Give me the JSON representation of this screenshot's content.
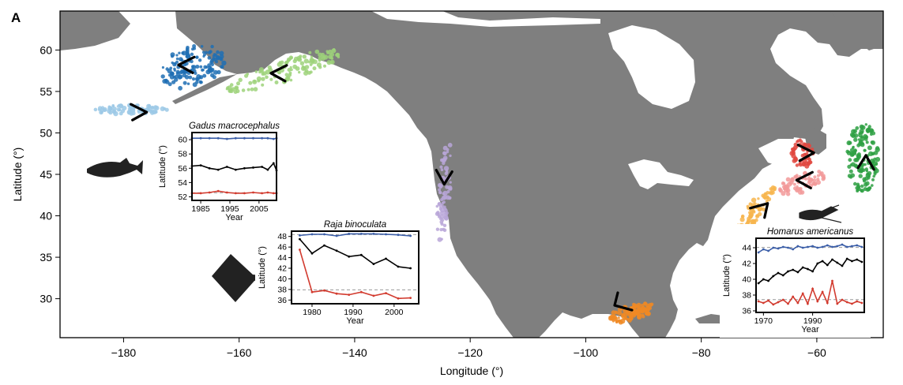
{
  "panel_label": "A",
  "map": {
    "xlabel": "Longitude (°)",
    "ylabel": "Latitude (°)",
    "xlim": [
      -191,
      -48.5
    ],
    "ylim": [
      25.3,
      64.7
    ],
    "x_ticks": [
      -180,
      -160,
      -140,
      -120,
      -100,
      -80,
      -60
    ],
    "x_tick_labels": [
      "−180",
      "−160",
      "−140",
      "−120",
      "−100",
      "−80",
      "−60"
    ],
    "y_ticks": [
      30,
      35,
      40,
      45,
      50,
      55,
      60
    ],
    "y_tick_labels": [
      "30",
      "35",
      "40",
      "45",
      "50",
      "55",
      "60"
    ],
    "land_color": "#7f7f7f",
    "ocean_color": "#ffffff"
  },
  "species_regions": [
    {
      "region": "Bering Sea (dark blue)",
      "color": "#1f6fb4",
      "center": [
        -168,
        58
      ]
    },
    {
      "region": "Aleutian Islands (light blue)",
      "color": "#9cc9e6",
      "center": [
        -179,
        52.8
      ]
    },
    {
      "region": "Gulf of Alaska (light green)",
      "color": "#9ed27a",
      "center": [
        -152,
        57.5
      ]
    },
    {
      "region": "US West Coast (lavender)",
      "color": "#b9a6d8",
      "center": [
        -124.5,
        43
      ]
    },
    {
      "region": "Gulf of Mexico (orange)",
      "color": "#f08a24",
      "center": [
        -92,
        28.3
      ]
    },
    {
      "region": "Northeast US shelf (light orange)",
      "color": "#f7b54d",
      "center": [
        -71,
        40.5
      ]
    },
    {
      "region": "Scotian Shelf (pink)",
      "color": "#f29a9a",
      "center": [
        -62.5,
        44
      ]
    },
    {
      "region": "Gulf of St. Lawrence (red)",
      "color": "#e0483f",
      "center": [
        -62.5,
        47.5
      ]
    },
    {
      "region": "Newfoundland (green)",
      "color": "#2ea043",
      "center": [
        -52,
        47
      ]
    }
  ],
  "shift_arrows": [
    {
      "region": "Bering Sea",
      "tip": [
        -170.5,
        58.2
      ],
      "orientation": "left"
    },
    {
      "region": "Aleutian Islands",
      "tip": [
        -176,
        52.5
      ],
      "orientation": "right"
    },
    {
      "region": "Gulf of Alaska",
      "tip": [
        -154.5,
        57.2
      ],
      "orientation": "left"
    },
    {
      "region": "US West Coast",
      "tip": [
        -124.5,
        43.8
      ],
      "orientation": "down"
    },
    {
      "region": "Gulf of Mexico",
      "tip": [
        -95,
        29.2
      ],
      "orientation": "up-left"
    },
    {
      "region": "Northeast US shelf",
      "tip": [
        -68.5,
        41.5
      ],
      "orientation": "up-right"
    },
    {
      "region": "Scotian Shelf",
      "tip": [
        -63.5,
        44.3
      ],
      "orientation": "left"
    },
    {
      "region": "Gulf of St. Lawrence",
      "tip": [
        -60.5,
        47.6
      ],
      "orientation": "right"
    },
    {
      "region": "Newfoundland",
      "tip": [
        -51.5,
        47.3
      ],
      "orientation": "up"
    }
  ],
  "chart_data": [
    {
      "type": "line",
      "title": "Gadus macrocephalus",
      "xlabel": "Year",
      "ylabel": "Latitude (°)",
      "xlim": [
        1982,
        2011
      ],
      "ylim": [
        51.5,
        61
      ],
      "x_ticks": [
        1985,
        1995,
        2005
      ],
      "y_ticks": [
        52,
        54,
        56,
        58,
        60
      ],
      "series": [
        {
          "role": "upper edge",
          "color": "#3b5ea8",
          "x": [
            1982,
            1985,
            1988,
            1991,
            1994,
            1997,
            2000,
            2003,
            2006,
            2008,
            2010,
            2011
          ],
          "values": [
            60.2,
            60.2,
            60.2,
            60.2,
            60.1,
            60.2,
            60.2,
            60.2,
            60.2,
            60.2,
            60.1,
            60.2
          ]
        },
        {
          "role": "centroid",
          "color": "#000000",
          "x": [
            1982,
            1985,
            1988,
            1991,
            1994,
            1997,
            2000,
            2003,
            2006,
            2008,
            2010,
            2011
          ],
          "values": [
            56.3,
            56.4,
            56.0,
            55.8,
            56.2,
            55.8,
            56.0,
            56.1,
            56.2,
            55.8,
            56.7,
            55.7
          ]
        },
        {
          "role": "lower edge",
          "color": "#d23b2f",
          "x": [
            1982,
            1985,
            1988,
            1991,
            1994,
            1997,
            2000,
            2003,
            2006,
            2008,
            2010,
            2011
          ],
          "values": [
            52.5,
            52.5,
            52.6,
            52.8,
            52.6,
            52.5,
            52.5,
            52.6,
            52.5,
            52.6,
            52.5,
            52.5
          ]
        }
      ]
    },
    {
      "type": "line",
      "title": "Raja binoculata",
      "xlabel": "Year",
      "ylabel": "Latitude (°)",
      "xlim": [
        1975,
        2006
      ],
      "ylim": [
        35.3,
        49
      ],
      "x_ticks": [
        1980,
        1990,
        2000
      ],
      "y_ticks": [
        36,
        38,
        40,
        42,
        44,
        46,
        48
      ],
      "series": [
        {
          "role": "upper edge",
          "color": "#3b5ea8",
          "x": [
            1977,
            1980,
            1983,
            1986,
            1989,
            1992,
            1995,
            1998,
            2001,
            2004
          ],
          "values": [
            48.2,
            48.4,
            48.4,
            48.1,
            48.5,
            48.5,
            48.5,
            48.4,
            48.3,
            48.1
          ]
        },
        {
          "role": "centroid",
          "color": "#000000",
          "x": [
            1977,
            1980,
            1983,
            1986,
            1989,
            1992,
            1995,
            1998,
            2001,
            2004
          ],
          "values": [
            47.5,
            44.8,
            46.3,
            45.3,
            44.2,
            44.5,
            42.8,
            43.8,
            42.3,
            42.0
          ]
        },
        {
          "role": "lower edge",
          "color": "#d23b2f",
          "x": [
            1977,
            1980,
            1983,
            1986,
            1989,
            1992,
            1995,
            1998,
            2001,
            2004
          ],
          "values": [
            45.5,
            37.5,
            37.8,
            37.2,
            37.0,
            37.5,
            36.8,
            37.3,
            36.3,
            36.4
          ]
        }
      ]
    },
    {
      "type": "line",
      "title": "Homarus americanus",
      "xlabel": "Year",
      "ylabel": "Latitude (°)",
      "xlim": [
        1967,
        2011
      ],
      "ylim": [
        35.8,
        45.2
      ],
      "x_ticks": [
        1970,
        1990
      ],
      "y_ticks": [
        36,
        38,
        40,
        42,
        44
      ],
      "series": [
        {
          "role": "upper edge",
          "color": "#3b5ea8",
          "x": [
            1968,
            1970,
            1972,
            1974,
            1976,
            1978,
            1980,
            1982,
            1984,
            1986,
            1988,
            1990,
            1992,
            1994,
            1996,
            1998,
            2000,
            2002,
            2004,
            2006,
            2008,
            2010
          ],
          "values": [
            43.4,
            43.8,
            43.6,
            44.0,
            43.9,
            44.1,
            44.0,
            43.8,
            44.2,
            44.0,
            44.1,
            44.2,
            44.0,
            44.1,
            44.3,
            44.1,
            44.2,
            44.4,
            44.1,
            44.2,
            44.3,
            44.1
          ]
        },
        {
          "role": "centroid",
          "color": "#000000",
          "x": [
            1968,
            1970,
            1972,
            1974,
            1976,
            1978,
            1980,
            1982,
            1984,
            1986,
            1988,
            1990,
            1992,
            1994,
            1996,
            1998,
            2000,
            2002,
            2004,
            2006,
            2008,
            2010
          ],
          "values": [
            39.5,
            40.0,
            39.8,
            40.4,
            40.8,
            40.5,
            41.0,
            41.2,
            40.9,
            41.5,
            41.3,
            41.0,
            42.0,
            42.3,
            41.8,
            42.5,
            42.1,
            41.7,
            42.6,
            42.3,
            42.5,
            42.2
          ]
        },
        {
          "role": "lower edge",
          "color": "#d23b2f",
          "x": [
            1968,
            1970,
            1972,
            1974,
            1976,
            1978,
            1980,
            1982,
            1984,
            1986,
            1988,
            1990,
            1992,
            1994,
            1996,
            1998,
            2000,
            2002,
            2004,
            2006,
            2008,
            2010
          ],
          "values": [
            37.2,
            37.0,
            37.3,
            36.8,
            37.1,
            37.4,
            36.9,
            37.8,
            37.0,
            38.2,
            36.9,
            38.8,
            37.2,
            38.4,
            37.0,
            39.8,
            36.9,
            37.4,
            37.1,
            36.9,
            37.2,
            37.0
          ]
        }
      ]
    }
  ]
}
